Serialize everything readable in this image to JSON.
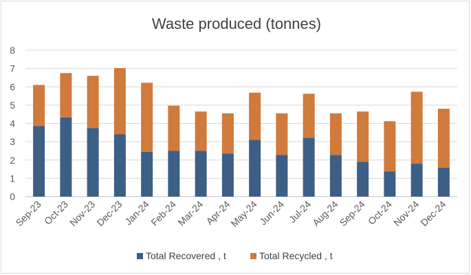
{
  "chart_data": {
    "type": "bar",
    "stacked": true,
    "title": "Waste produced (tonnes)",
    "xlabel": "",
    "ylabel": "",
    "ylim": [
      0,
      8
    ],
    "yticks": [
      0,
      1,
      2,
      3,
      4,
      5,
      6,
      7,
      8
    ],
    "grid": true,
    "legend_position": "bottom",
    "categories": [
      "Sep-23",
      "Oct-23",
      "Nov-23",
      "Dec-23",
      "Jan-24",
      "Feb-24",
      "Mar-24",
      "Apr-24",
      "May-24",
      "Jun-24",
      "Jul-24",
      "Aug-24",
      "Sep-24",
      "Oct-24",
      "Nov-24",
      "Dec-24"
    ],
    "series": [
      {
        "name": "Total Recovered , t",
        "color": "#3d5f85",
        "values": [
          3.85,
          4.33,
          3.75,
          3.4,
          2.45,
          2.5,
          2.5,
          2.35,
          3.1,
          2.28,
          3.22,
          2.28,
          1.9,
          1.37,
          1.8,
          1.58
        ]
      },
      {
        "name": "Total Recycled , t",
        "color": "#d07a3c",
        "values": [
          2.25,
          2.42,
          2.85,
          3.62,
          3.77,
          2.47,
          2.15,
          2.2,
          2.58,
          2.27,
          2.4,
          2.27,
          2.75,
          2.75,
          3.93,
          3.22
        ]
      }
    ]
  }
}
